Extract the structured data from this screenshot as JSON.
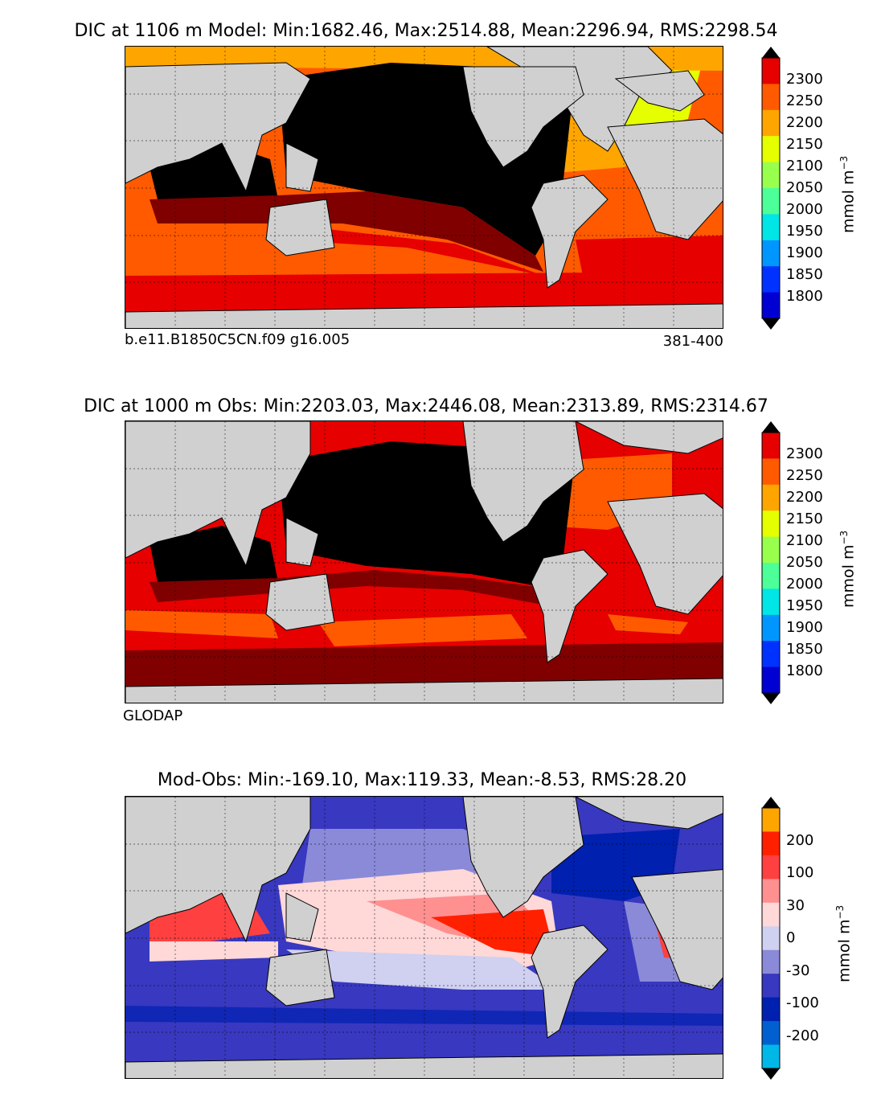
{
  "panels": [
    {
      "id": "model",
      "title": "DIC at 1106 m Model: Min:1682.46, Max:2514.88, Mean:2296.94, RMS:2298.54",
      "left_note": "b.e11.B1850C5CN.f09 g16.005",
      "right_note": "381-400",
      "unit": "mmol m",
      "unit_exponent": "−3",
      "colorbar": {
        "labels": [
          "2300",
          "2250",
          "2200",
          "2150",
          "2100",
          "2050",
          "2000",
          "1950",
          "1900",
          "1850",
          "1800"
        ],
        "colors": [
          "#800000",
          "#e60000",
          "#ff5a00",
          "#ffa500",
          "#e6ff00",
          "#99ff4d",
          "#4dff99",
          "#00e6e6",
          "#0096ff",
          "#0032ff",
          "#0000d2",
          "#000080"
        ]
      }
    },
    {
      "id": "obs",
      "title": "DIC at 1000 m Obs: Min:2203.03, Max:2446.08, Mean:2313.89, RMS:2314.67",
      "left_note": "GLODAP",
      "right_note": "",
      "unit": "mmol m",
      "unit_exponent": "−3",
      "colorbar": {
        "labels": [
          "2300",
          "2250",
          "2200",
          "2150",
          "2100",
          "2050",
          "2000",
          "1950",
          "1900",
          "1850",
          "1800"
        ],
        "colors": [
          "#800000",
          "#e60000",
          "#ff5a00",
          "#ffa500",
          "#e6ff00",
          "#99ff4d",
          "#4dff99",
          "#00e6e6",
          "#0096ff",
          "#0032ff",
          "#0000d2",
          "#000080"
        ]
      }
    },
    {
      "id": "diff",
      "title": "Mod-Obs: Min:-169.10, Max:119.33, Mean:-8.53, RMS:28.20",
      "left_note": "",
      "right_note": "",
      "unit": "mmol m",
      "unit_exponent": "−3",
      "colorbar": {
        "labels": [
          "200",
          "100",
          "30",
          "0",
          "-30",
          "-100",
          "-200"
        ],
        "colors": [
          "#ffff00",
          "#ffa500",
          "#ff2000",
          "#ff4040",
          "#ff9090",
          "#ffd8d8",
          "#d0d0f0",
          "#8a8ad8",
          "#3838c0",
          "#0020b0",
          "#0060d0",
          "#00b8e8",
          "#00ffff"
        ]
      }
    }
  ],
  "colors": {
    "land": "#d0d0d0",
    "no_data": "#ffffff",
    "model_pacific": "#000000",
    "obs_pacific": "#000000"
  }
}
